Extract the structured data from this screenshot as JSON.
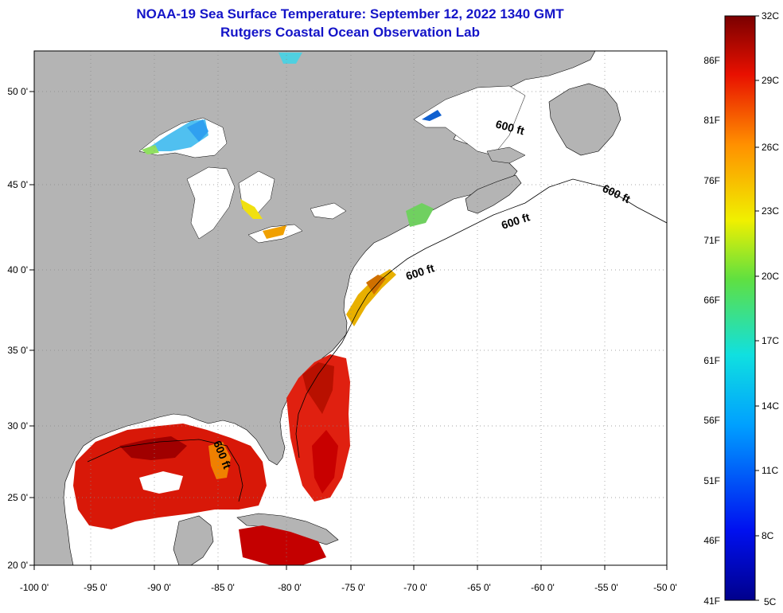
{
  "header": {
    "title": "NOAA-19 Sea Surface Temperature:  September 12, 2022 1340 GMT",
    "subtitle": "Rutgers Coastal Ocean Observation Lab"
  },
  "map": {
    "lon_labels": [
      "-100 0'",
      "-95 0'",
      "-90 0'",
      "-85 0'",
      "-80 0'",
      "-75 0'",
      "-70 0'",
      "-65 0'",
      "-60 0'",
      "-55 0'",
      "-50 0'"
    ],
    "lat_labels": [
      "50 0'",
      "45 0'",
      "40 0'",
      "35 0'",
      "30 0'",
      "25 0'",
      "20 0'"
    ],
    "contour_labels": [
      "600 ft",
      "600 ft",
      "600 ft",
      "600 ft",
      "600 ft"
    ]
  },
  "colorbar": {
    "celsius_labels": [
      "32C",
      "29C",
      "26C",
      "23C",
      "20C",
      "17C",
      "14C",
      "11C",
      "8C",
      "5C"
    ],
    "fahrenheit_labels": [
      "86F",
      "81F",
      "76F",
      "71F",
      "66F",
      "61F",
      "56F",
      "51F",
      "46F",
      "41F"
    ]
  },
  "colors": {
    "land": "#b4b4b4",
    "ocean_no_data": "#ffffff",
    "title": "#1414c8"
  }
}
